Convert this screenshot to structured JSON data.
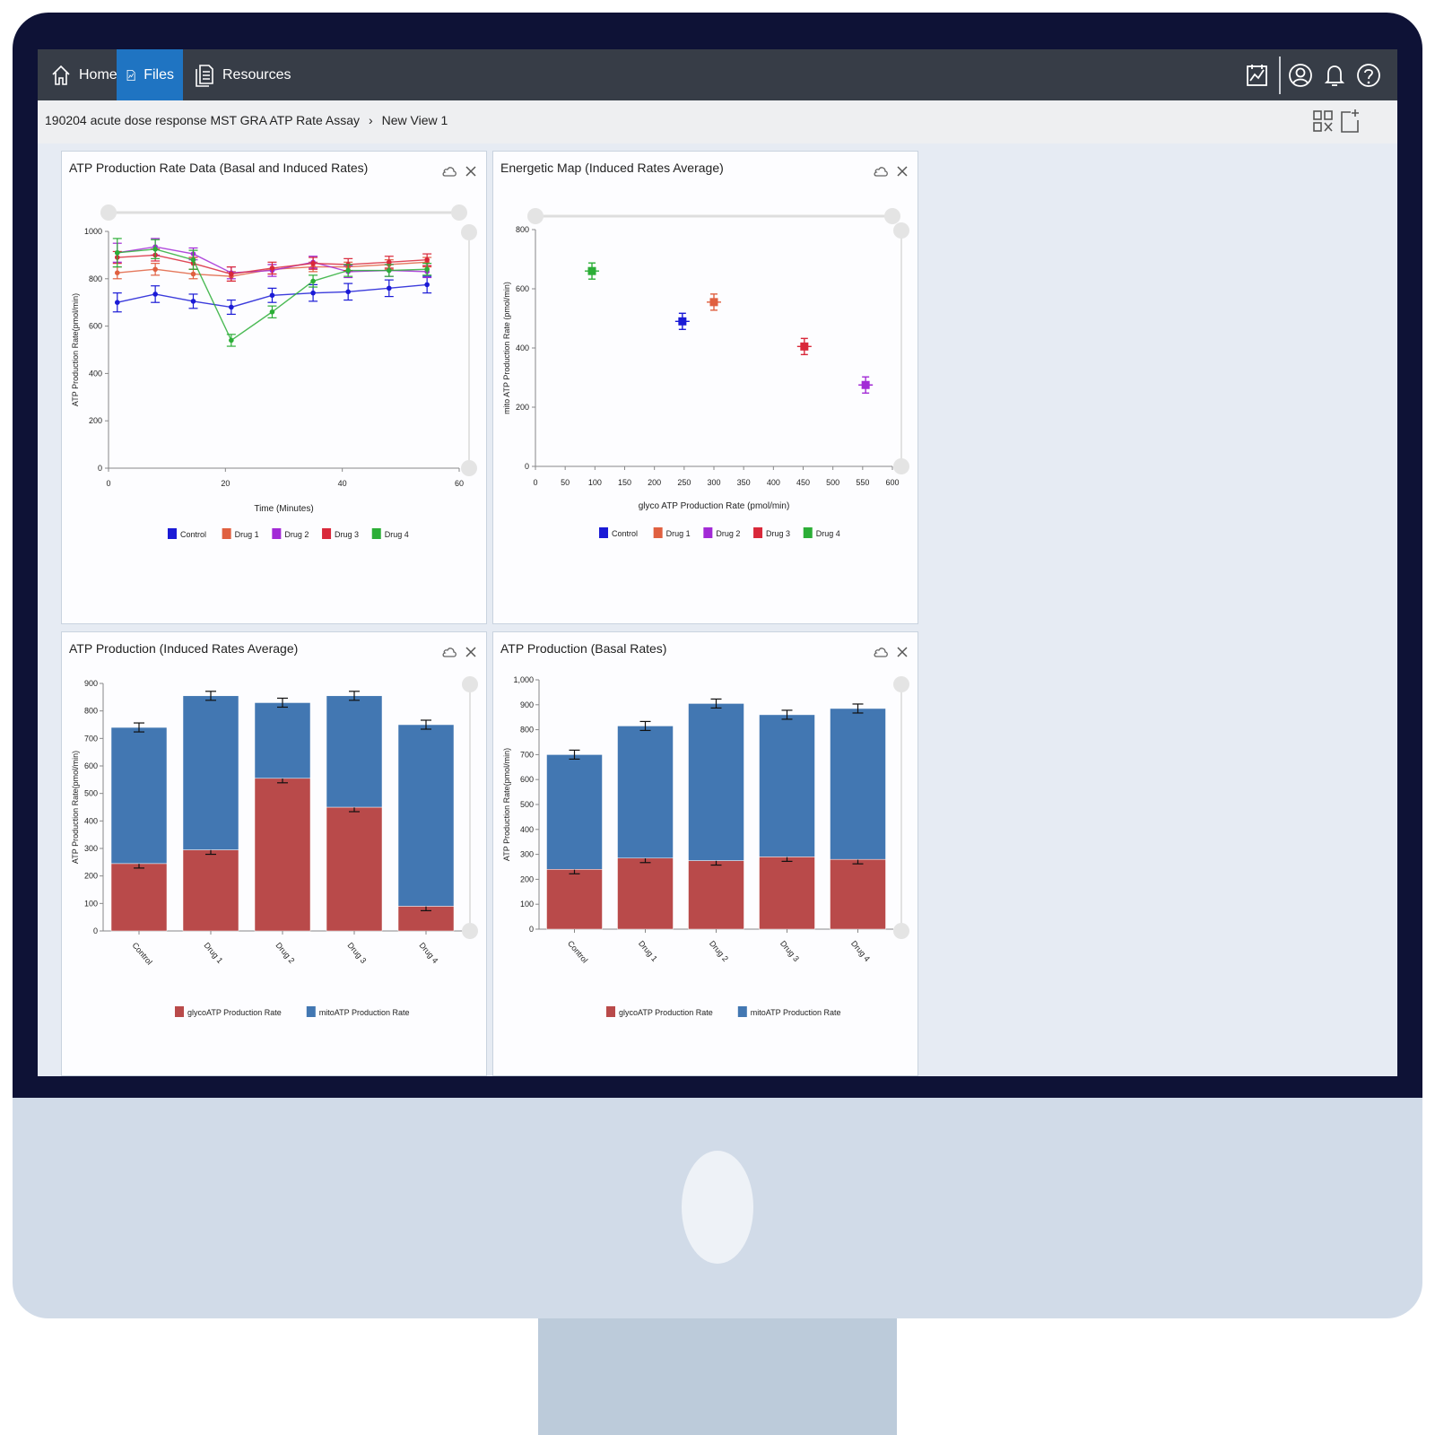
{
  "nav": {
    "tabs": [
      {
        "label": "Home",
        "icon": "home-icon"
      },
      {
        "label": "Files",
        "icon": "chart-file-icon",
        "active": true
      },
      {
        "label": "Resources",
        "icon": "document-icon"
      }
    ],
    "right_icons": [
      "analysis-icon",
      "user-icon",
      "bell-icon",
      "help-icon"
    ],
    "active_color": "#1f74c2",
    "bar_color": "#373d47"
  },
  "breadcrumb": {
    "project": "190204 acute dose response MST GRA ATP Rate Assay",
    "separator": "›",
    "view": "New View 1",
    "right_icons": [
      "layout-grid-icon",
      "add-view-icon"
    ]
  },
  "panels": {
    "p1": {
      "title": "ATP Production Rate Data (Basal and Induced Rates)"
    },
    "p2": {
      "title": "Energetic Map (Induced Rates Average)"
    },
    "p3": {
      "title": "ATP Production (Induced Rates Average)"
    },
    "p4": {
      "title": "ATP Production (Basal Rates)"
    }
  },
  "chart_data": [
    {
      "type": "line",
      "title": "ATP Production Rate Data (Basal and Induced Rates)",
      "xlabel": "Time (Minutes)",
      "ylabel": "ATP Production Rate(pmol/min)",
      "xlim": [
        0,
        60
      ],
      "ylim": [
        0,
        1000
      ],
      "xticks": [
        "0",
        "20",
        "40",
        "60"
      ],
      "yticks": [
        "0",
        "200",
        "400",
        "600",
        "800",
        "1000"
      ],
      "x": [
        1.5,
        8,
        14.5,
        21,
        28,
        35,
        41,
        48,
        54.5
      ],
      "legend_position": "bottom",
      "series": [
        {
          "name": "Control",
          "color": "#1a1ad6",
          "values": [
            700,
            735,
            705,
            680,
            730,
            740,
            745,
            760,
            775
          ],
          "err": [
            40,
            35,
            30,
            30,
            30,
            35,
            35,
            35,
            35
          ]
        },
        {
          "name": "Drug 1",
          "color": "#e06040",
          "values": [
            825,
            840,
            820,
            810,
            840,
            850,
            850,
            860,
            870
          ],
          "err": [
            25,
            25,
            20,
            20,
            20,
            20,
            20,
            20,
            20
          ]
        },
        {
          "name": "Drug 2",
          "color": "#a22ad6",
          "values": [
            910,
            935,
            905,
            825,
            835,
            870,
            830,
            835,
            830
          ],
          "err": [
            40,
            35,
            25,
            25,
            25,
            25,
            25,
            25,
            25
          ]
        },
        {
          "name": "Drug 3",
          "color": "#d9283a",
          "values": [
            890,
            900,
            865,
            820,
            845,
            865,
            860,
            870,
            880
          ],
          "err": [
            25,
            25,
            25,
            30,
            25,
            25,
            25,
            25,
            25
          ]
        },
        {
          "name": "Drug 4",
          "color": "#2cae37",
          "values": [
            910,
            925,
            880,
            540,
            660,
            790,
            835,
            835,
            840
          ],
          "err": [
            60,
            40,
            40,
            25,
            25,
            25,
            25,
            25,
            25
          ]
        }
      ]
    },
    {
      "type": "scatter",
      "title": "Energetic Map (Induced Rates Average)",
      "xlabel": "glyco ATP Production Rate (pmol/min)",
      "ylabel": "mito ATP Production Rate (pmol/min)",
      "xlim": [
        0,
        600
      ],
      "ylim": [
        0,
        800
      ],
      "xticks": [
        "0",
        "50",
        "100",
        "150",
        "200",
        "250",
        "300",
        "350",
        "400",
        "450",
        "500",
        "550",
        "600"
      ],
      "yticks": [
        "0",
        "200",
        "400",
        "600",
        "800"
      ],
      "legend_position": "bottom",
      "series": [
        {
          "name": "Control",
          "color": "#1a1ad6",
          "x": 247,
          "y": 490
        },
        {
          "name": "Drug 1",
          "color": "#e06040",
          "x": 300,
          "y": 555
        },
        {
          "name": "Drug 2",
          "color": "#a22ad6",
          "x": 555,
          "y": 275
        },
        {
          "name": "Drug 3",
          "color": "#d9283a",
          "x": 452,
          "y": 405
        },
        {
          "name": "Drug 4",
          "color": "#2cae37",
          "x": 95,
          "y": 660
        }
      ]
    },
    {
      "type": "bar",
      "stacked": true,
      "title": "ATP Production (Induced Rates Average)",
      "ylabel": "ATP Production Rate(pmol/min)",
      "ylim": [
        0,
        900
      ],
      "yticks": [
        "0",
        "100",
        "200",
        "300",
        "400",
        "500",
        "600",
        "700",
        "800",
        "900"
      ],
      "categories": [
        "Control",
        "Drug 1",
        "Drug 2",
        "Drug 3",
        "Drug 4"
      ],
      "legend_position": "bottom",
      "series": [
        {
          "name": "glycoATP Production Rate",
          "color": "#b94a4a",
          "values": [
            245,
            295,
            555,
            450,
            90
          ]
        },
        {
          "name": "mitoATP Production Rate",
          "color": "#4277b2",
          "values": [
            495,
            560,
            275,
            405,
            660
          ]
        }
      ]
    },
    {
      "type": "bar",
      "stacked": true,
      "title": "ATP Production (Basal Rates)",
      "ylabel": "ATP Production Rate(pmol/min)",
      "ylim": [
        0,
        1000
      ],
      "yticks": [
        "0",
        "100",
        "200",
        "300",
        "400",
        "500",
        "600",
        "700",
        "800",
        "900",
        "1,000"
      ],
      "categories": [
        "Control",
        "Drug 1",
        "Drug 2",
        "Drug 3",
        "Drug 4"
      ],
      "legend_position": "bottom",
      "series": [
        {
          "name": "glycoATP Production Rate",
          "color": "#b94a4a",
          "values": [
            240,
            285,
            275,
            290,
            280
          ]
        },
        {
          "name": "mitoATP Production Rate",
          "color": "#4277b2",
          "values": [
            460,
            530,
            630,
            570,
            605
          ]
        }
      ]
    }
  ]
}
